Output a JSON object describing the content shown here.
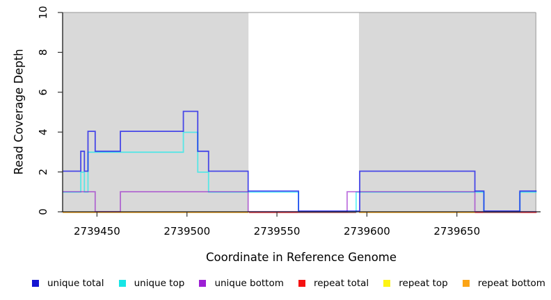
{
  "chart_data": {
    "type": "line",
    "subtype": "step-coverage-plot",
    "xlabel": "Coordinate in Reference Genome",
    "ylabel": "Read Coverage Depth",
    "xlim": [
      2739430.9,
      2739696.5
    ],
    "ylim": [
      0,
      10
    ],
    "x_ticks": [
      2739450,
      2739500,
      2739550,
      2739600,
      2739650
    ],
    "x_tick_labels": [
      "2739450",
      "2739500",
      "2739550",
      "2739600",
      "2739650"
    ],
    "y_ticks": [
      0,
      2,
      4,
      6,
      8,
      10
    ],
    "y_tick_labels": [
      "0",
      "2",
      "4",
      "6",
      "8",
      "10"
    ],
    "grid": false,
    "legend_position": "bottom",
    "background_color": "#ffffff",
    "region_fill": "#d9d9d9",
    "region_border_color": "#a6a6a6",
    "region_border_end": 2739693.9,
    "shaded_regions": [
      {
        "start": 2739430.9,
        "end": 2739534.2
      },
      {
        "start": 2739595.6,
        "end": 2739693.9
      }
    ],
    "draw_order": [
      "repeat total",
      "repeat top",
      "repeat bottom",
      "unique top",
      "unique bottom",
      "unique total"
    ],
    "series": [
      {
        "name": "unique total",
        "color": "#1414d2",
        "line_color": "rgba(0,0,238,0.68)",
        "dy": -1.1,
        "segments": [
          {
            "steps": [
              [
                2739430.9,
                2
              ],
              [
                2739441,
                3
              ],
              [
                2739443,
                2
              ],
              [
                2739445,
                4
              ],
              [
                2739449,
                3
              ],
              [
                2739463,
                4
              ],
              [
                2739498,
                5
              ],
              [
                2739506,
                3
              ],
              [
                2739512,
                2
              ],
              [
                2739534,
                1
              ],
              [
                2739562,
                0
              ],
              [
                2739596,
                2
              ],
              [
                2739660,
                1
              ],
              [
                2739665,
                0
              ],
              [
                2739685,
                1
              ]
            ],
            "end": 2739694.3
          }
        ]
      },
      {
        "name": "unique top",
        "color": "#17e5e5",
        "line_color": "rgba(0,238,238,0.60)",
        "dy": 0.3,
        "segments": [
          {
            "steps": [
              [
                2739430.9,
                1
              ],
              [
                2739441,
                2
              ],
              [
                2739443,
                1
              ],
              [
                2739445,
                3
              ],
              [
                2739498,
                4
              ],
              [
                2739506,
                2
              ],
              [
                2739512,
                1
              ],
              [
                2739562,
                0
              ],
              [
                2739594,
                1
              ],
              [
                2739665,
                0
              ],
              [
                2739685,
                1
              ]
            ],
            "end": 2739694.3
          }
        ]
      },
      {
        "name": "unique bottom",
        "color": "#9c1fd4",
        "line_color": "rgba(148,26,201,0.60)",
        "dy": -0.2,
        "segments": [
          {
            "steps": [
              [
                2739430.9,
                1
              ],
              [
                2739449,
                0
              ],
              [
                2739463,
                1
              ],
              [
                2739534,
                0
              ],
              [
                2739589,
                1
              ],
              [
                2739660,
                0
              ]
            ],
            "end": 2739694.3
          }
        ]
      },
      {
        "name": "repeat total",
        "color": "#f51111",
        "line_color": "rgba(255,0,0,0.60)",
        "dy": 1.1,
        "segments": [
          {
            "steps": [
              [
                2739534.5,
                0
              ]
            ],
            "end": 2739594
          },
          {
            "steps": [
              [
                2739660,
                0
              ]
            ],
            "end": 2739694.3
          }
        ]
      },
      {
        "name": "repeat top",
        "color": "#fdf414",
        "line_color": "rgba(255,255,0,0.65)",
        "dy": 0.5,
        "segments": [
          {
            "steps": [
              [
                2739430.9,
                0
              ]
            ],
            "end": 2739534.2
          },
          {
            "steps": [
              [
                2739595.6,
                0
              ]
            ],
            "end": 2739660
          }
        ]
      },
      {
        "name": "repeat bottom",
        "color": "#fba416",
        "line_color": "rgba(255,150,0,0.85)",
        "dy": 0.7,
        "segments": [
          {
            "steps": [
              [
                2739430.9,
                0
              ]
            ],
            "end": 2739534.2
          },
          {
            "steps": [
              [
                2739595.6,
                0
              ]
            ],
            "end": 2739660
          }
        ]
      }
    ]
  }
}
